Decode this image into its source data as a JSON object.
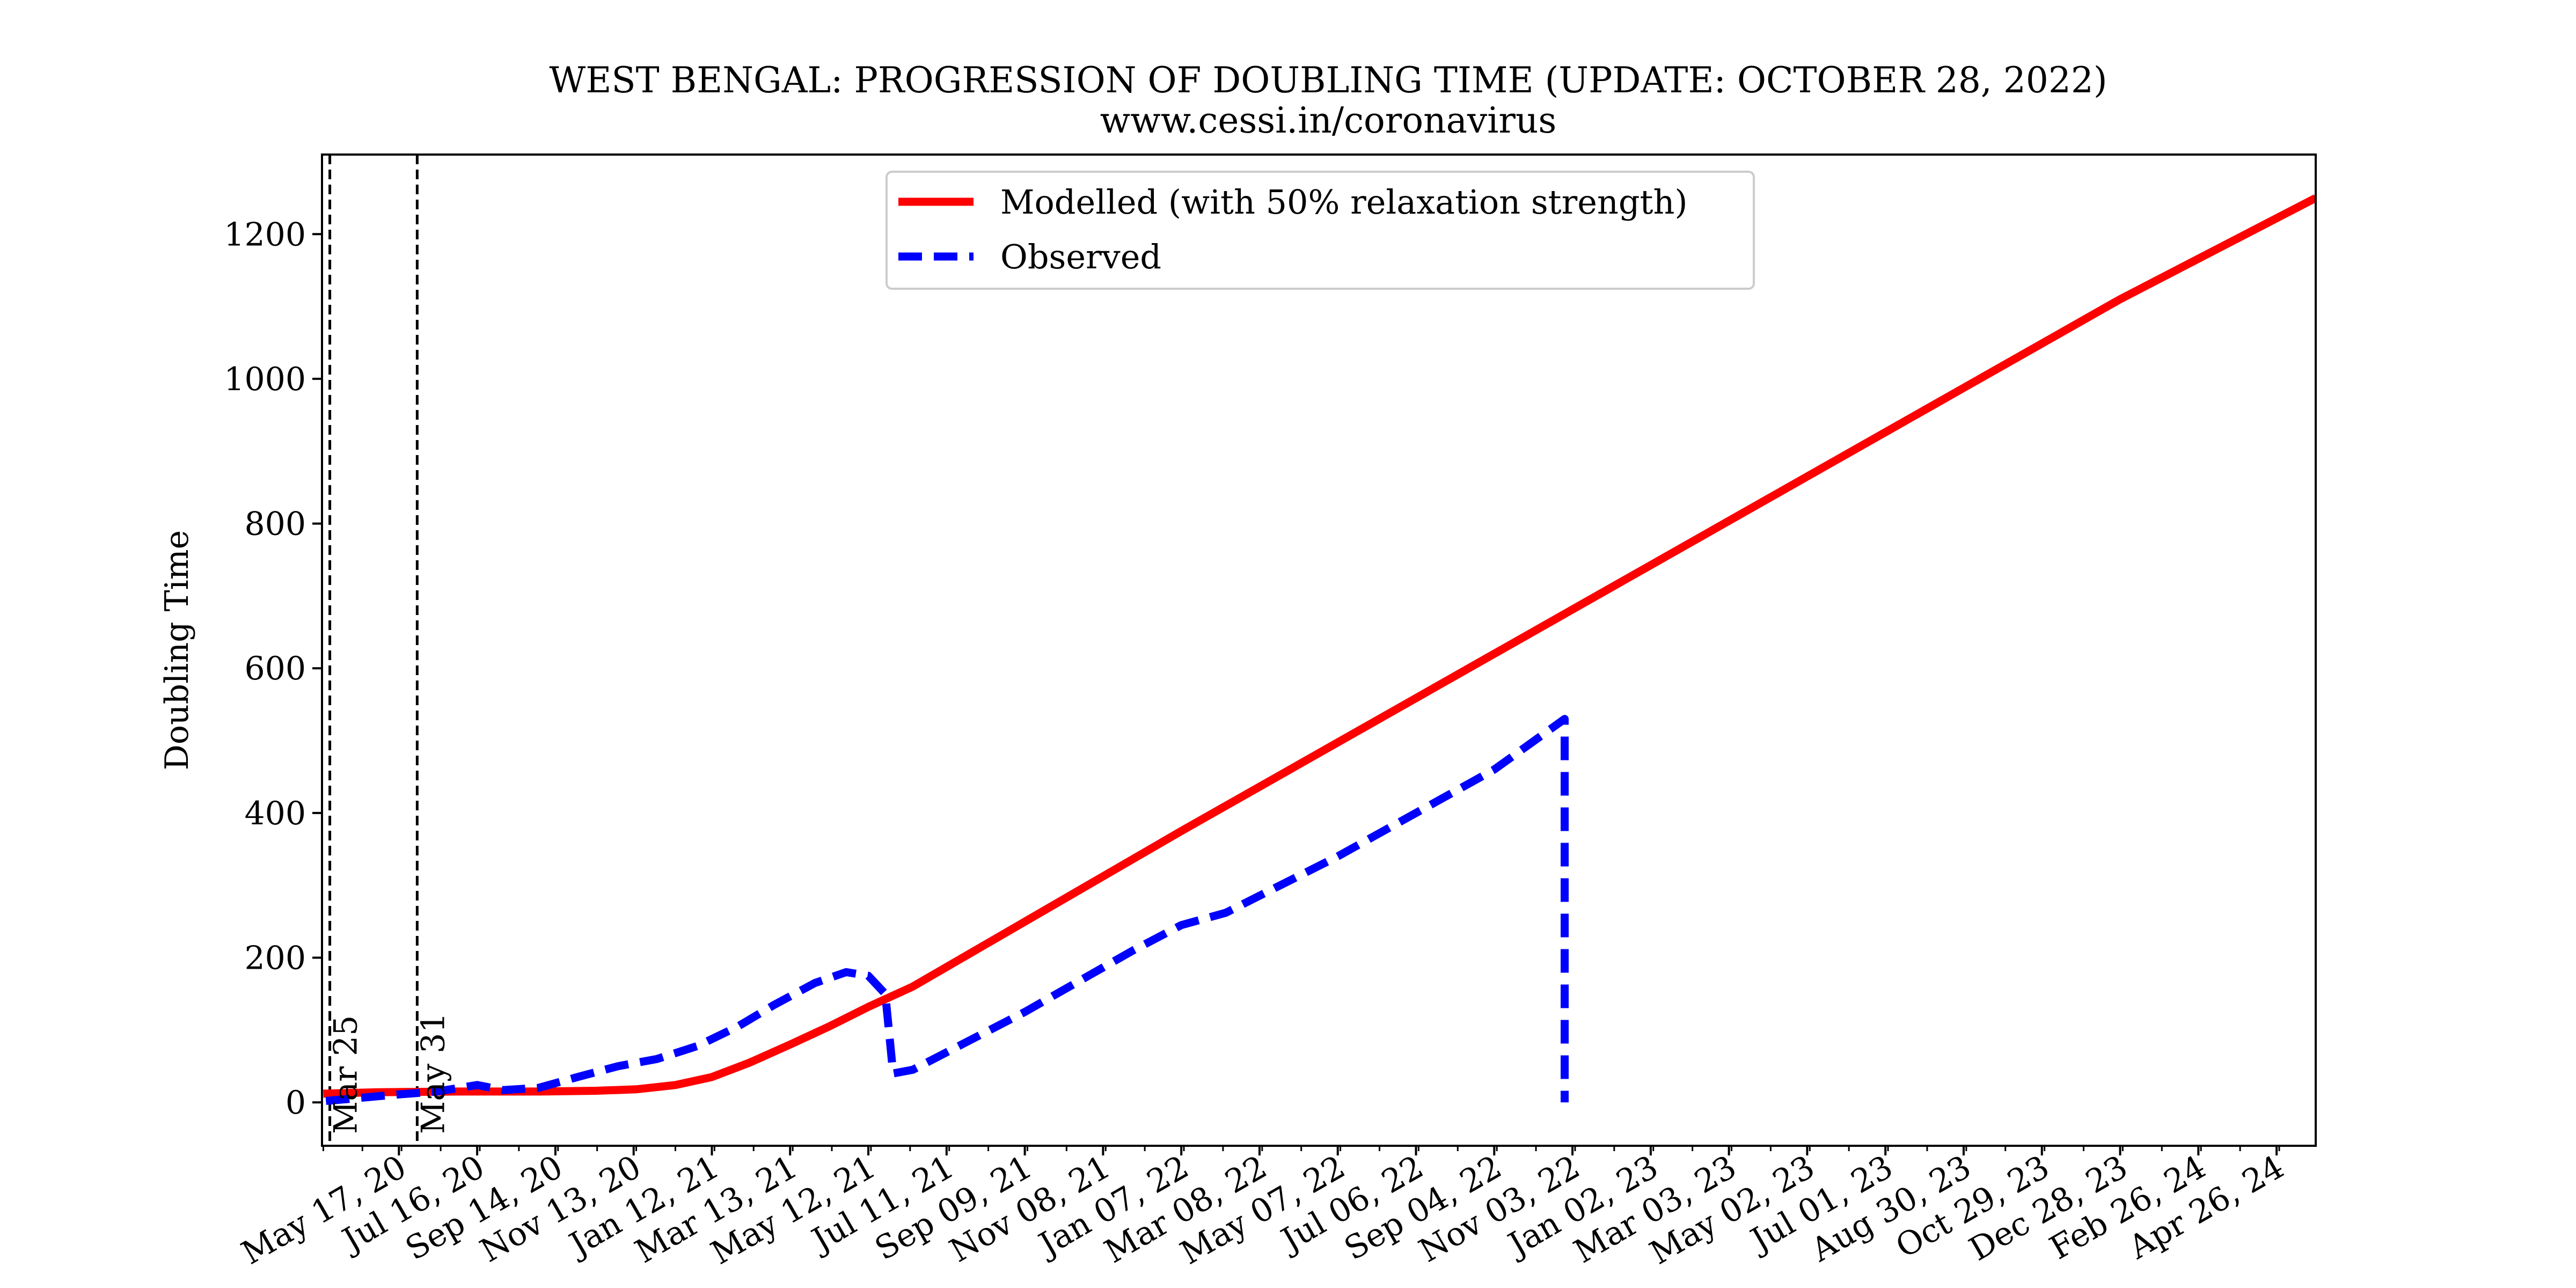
{
  "chart_data": {
    "type": "line",
    "title": "WEST BENGAL: PROGRESSION OF DOUBLING TIME (UPDATE: OCTOBER 28, 2022)",
    "subtitle": "www.cessi.in/coronavirus",
    "xlabel": "",
    "ylabel": "Doubling Time",
    "x_axis_type": "date",
    "xlim": [
      "2020-03-19",
      "2024-05-26"
    ],
    "ylim": [
      -60,
      1310
    ],
    "x_ticks": [
      "2020-05-17",
      "2020-07-16",
      "2020-09-14",
      "2020-11-13",
      "2021-01-12",
      "2021-03-13",
      "2021-05-12",
      "2021-07-11",
      "2021-09-09",
      "2021-11-08",
      "2022-01-07",
      "2022-03-08",
      "2022-05-07",
      "2022-07-06",
      "2022-09-04",
      "2022-11-03",
      "2023-01-02",
      "2023-03-03",
      "2023-05-02",
      "2023-07-01",
      "2023-08-30",
      "2023-10-29",
      "2023-12-28",
      "2024-02-26",
      "2024-04-26"
    ],
    "x_tick_labels": [
      "May 17, 20",
      "Jul 16, 20",
      "Sep 14, 20",
      "Nov 13, 20",
      "Jan 12, 21",
      "Mar 13, 21",
      "May 12, 21",
      "Jul 11, 21",
      "Sep 09, 21",
      "Nov 08, 21",
      "Jan 07, 22",
      "Mar 08, 22",
      "May 07, 22",
      "Jul 06, 22",
      "Sep 04, 22",
      "Nov 03, 22",
      "Jan 02, 23",
      "Mar 03, 23",
      "May 02, 23",
      "Jul 01, 23",
      "Aug 30, 23",
      "Oct 29, 23",
      "Dec 28, 23",
      "Feb 26, 24",
      "Apr 26, 24"
    ],
    "y_ticks": [
      0,
      200,
      400,
      600,
      800,
      1000,
      1200
    ],
    "grid": false,
    "legend_position": "top-center",
    "vlines": [
      {
        "x": "2020-03-25",
        "label": "Mar 25"
      },
      {
        "x": "2020-05-31",
        "label": "May 31"
      }
    ],
    "series": [
      {
        "name": "Modelled (with 50% relaxation strength)",
        "color": "#ff0000",
        "style": "solid",
        "points": [
          {
            "x": "2020-03-20",
            "y": 12
          },
          {
            "x": "2020-05-01",
            "y": 14
          },
          {
            "x": "2020-07-01",
            "y": 15
          },
          {
            "x": "2020-09-01",
            "y": 15
          },
          {
            "x": "2020-10-15",
            "y": 16
          },
          {
            "x": "2020-11-15",
            "y": 18
          },
          {
            "x": "2020-12-15",
            "y": 24
          },
          {
            "x": "2021-01-12",
            "y": 35
          },
          {
            "x": "2021-02-10",
            "y": 55
          },
          {
            "x": "2021-03-13",
            "y": 80
          },
          {
            "x": "2021-04-12",
            "y": 105
          },
          {
            "x": "2021-05-12",
            "y": 132
          },
          {
            "x": "2021-06-15",
            "y": 160
          },
          {
            "x": "2022-01-07",
            "y": 375
          },
          {
            "x": "2022-09-04",
            "y": 620
          },
          {
            "x": "2023-05-02",
            "y": 865
          },
          {
            "x": "2023-12-28",
            "y": 1110
          },
          {
            "x": "2024-05-26",
            "y": 1250
          }
        ]
      },
      {
        "name": "Observed",
        "color": "#0000ff",
        "style": "dashed",
        "points": [
          {
            "x": "2020-03-22",
            "y": 2
          },
          {
            "x": "2020-04-10",
            "y": 5
          },
          {
            "x": "2020-05-10",
            "y": 10
          },
          {
            "x": "2020-06-15",
            "y": 15
          },
          {
            "x": "2020-07-16",
            "y": 24
          },
          {
            "x": "2020-08-05",
            "y": 17
          },
          {
            "x": "2020-09-01",
            "y": 20
          },
          {
            "x": "2020-10-01",
            "y": 35
          },
          {
            "x": "2020-11-01",
            "y": 50
          },
          {
            "x": "2020-12-01",
            "y": 60
          },
          {
            "x": "2021-01-01",
            "y": 78
          },
          {
            "x": "2021-02-01",
            "y": 105
          },
          {
            "x": "2021-03-01",
            "y": 135
          },
          {
            "x": "2021-04-01",
            "y": 165
          },
          {
            "x": "2021-04-25",
            "y": 180
          },
          {
            "x": "2021-05-12",
            "y": 175
          },
          {
            "x": "2021-05-25",
            "y": 150
          },
          {
            "x": "2021-05-31",
            "y": 40
          },
          {
            "x": "2021-06-15",
            "y": 45
          },
          {
            "x": "2021-09-09",
            "y": 125
          },
          {
            "x": "2021-12-01",
            "y": 210
          },
          {
            "x": "2022-01-07",
            "y": 245
          },
          {
            "x": "2022-02-10",
            "y": 262
          },
          {
            "x": "2022-05-07",
            "y": 340
          },
          {
            "x": "2022-09-04",
            "y": 460
          },
          {
            "x": "2022-10-28",
            "y": 530
          },
          {
            "x": "2022-10-28",
            "y": 0
          }
        ]
      }
    ]
  }
}
